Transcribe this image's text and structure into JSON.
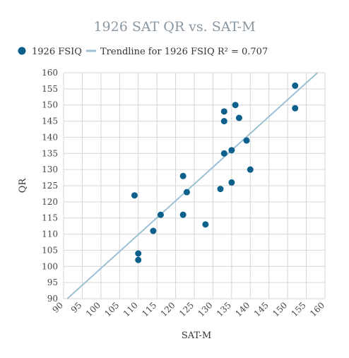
{
  "chart_data": {
    "type": "scatter",
    "title": "1926 SAT QR vs. SAT-M",
    "xlabel": "SAT-M",
    "ylabel": "QR",
    "xlim": [
      90,
      160
    ],
    "ylim": [
      90,
      160
    ],
    "xticks": [
      90,
      95,
      100,
      105,
      110,
      115,
      120,
      125,
      130,
      135,
      140,
      145,
      150,
      155,
      160
    ],
    "yticks": [
      90,
      95,
      100,
      105,
      110,
      115,
      120,
      125,
      130,
      135,
      140,
      145,
      150,
      155,
      160
    ],
    "grid": true,
    "legend_position": "top-left",
    "series": [
      {
        "name": "1926 FSIQ",
        "color": "#0d5f8c",
        "points": [
          [
            109,
            122
          ],
          [
            110,
            104
          ],
          [
            110,
            102
          ],
          [
            114,
            111
          ],
          [
            116,
            116
          ],
          [
            122,
            128
          ],
          [
            122,
            116
          ],
          [
            123,
            123
          ],
          [
            128,
            113
          ],
          [
            132,
            124
          ],
          [
            133,
            148
          ],
          [
            133,
            145
          ],
          [
            133,
            135
          ],
          [
            135,
            136
          ],
          [
            135,
            126
          ],
          [
            136,
            150
          ],
          [
            137,
            146
          ],
          [
            139,
            139
          ],
          [
            140,
            130
          ],
          [
            152,
            156
          ],
          [
            152,
            149
          ]
        ]
      }
    ],
    "trendline": {
      "name": "Trendline for 1926 FSIQ R² = 0.707",
      "color": "#9bbfd3",
      "x": [
        91,
        158
      ],
      "y": [
        90,
        160
      ]
    }
  }
}
